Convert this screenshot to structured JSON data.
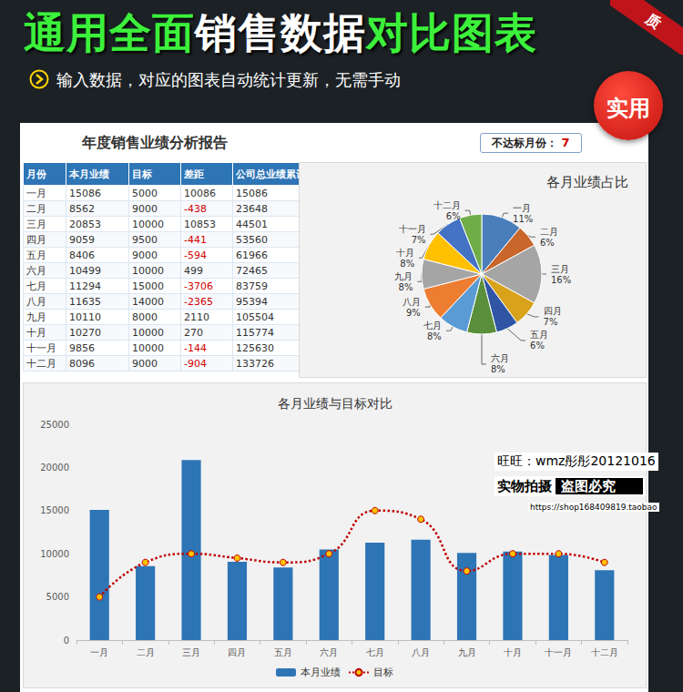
{
  "header": {
    "title": "通用全面销售数据对比图表",
    "subtitle": "输入数据，对应的图表自动统计更新，无需手动",
    "ribbon": "质",
    "badge": "实用"
  },
  "report": {
    "title": "年度销售业绩分析报告",
    "kpi": {
      "label": "不达标月份：",
      "value": 7
    }
  },
  "table": {
    "columns": [
      "月份",
      "本月业绩",
      "目标",
      "差距",
      "公司总业绩累计"
    ],
    "rows": [
      [
        "一月",
        15086,
        5000,
        10086,
        15086
      ],
      [
        "二月",
        8562,
        9000,
        -438,
        23648
      ],
      [
        "三月",
        20853,
        10000,
        10853,
        44501
      ],
      [
        "四月",
        9059,
        9500,
        -441,
        53560
      ],
      [
        "五月",
        8406,
        9000,
        -594,
        61966
      ],
      [
        "六月",
        10499,
        10000,
        499,
        72465
      ],
      [
        "七月",
        11294,
        15000,
        -3706,
        83759
      ],
      [
        "八月",
        11635,
        14000,
        -2365,
        95394
      ],
      [
        "九月",
        10110,
        8000,
        2110,
        105504
      ],
      [
        "十月",
        10270,
        10000,
        270,
        115774
      ],
      [
        "十一月",
        9856,
        10000,
        -144,
        125630
      ],
      [
        "十二月",
        8096,
        9000,
        -904,
        133726
      ]
    ]
  },
  "chart_data": [
    {
      "type": "pie",
      "title": "各月业绩占比",
      "categories": [
        "一月",
        "二月",
        "三月",
        "四月",
        "五月",
        "六月",
        "七月",
        "八月",
        "九月",
        "十月",
        "十一月",
        "十二月"
      ],
      "values": [
        11,
        6,
        16,
        7,
        6,
        8,
        8,
        9,
        8,
        8,
        7,
        6
      ],
      "value_labels": [
        "11%",
        "6%",
        "16%",
        "7%",
        "6%",
        "8%",
        "8%",
        "9%",
        "8%",
        "8%",
        "7%",
        "6%"
      ],
      "colors": [
        "#4a7ebb",
        "#c8662b",
        "#a5a5a5",
        "#d9a21b",
        "#2f55a4",
        "#5a8f3c",
        "#5b9bd5",
        "#ed7d31",
        "#a5a5a5",
        "#ffc000",
        "#4472c4",
        "#70ad47"
      ],
      "data_labels": true
    },
    {
      "type": "bar",
      "title": "各月业绩与目标对比",
      "categories": [
        "一月",
        "二月",
        "三月",
        "四月",
        "五月",
        "六月",
        "七月",
        "八月",
        "九月",
        "十月",
        "十一月",
        "十二月"
      ],
      "series": [
        {
          "name": "本月业绩",
          "type": "bar",
          "color": "#2e75b6",
          "values": [
            15086,
            8562,
            20853,
            9059,
            8406,
            10499,
            11294,
            11635,
            10110,
            10270,
            9856,
            8096
          ]
        },
        {
          "name": "目标",
          "type": "line",
          "color": "#c00000",
          "marker": "circle",
          "line_style": "dotted",
          "values": [
            5000,
            9000,
            10000,
            9500,
            9000,
            10000,
            15000,
            14000,
            8000,
            10000,
            10000,
            9000
          ]
        }
      ],
      "ylim": [
        0,
        25000
      ],
      "yticks": [
        0,
        5000,
        10000,
        15000,
        20000,
        25000
      ],
      "grid": false,
      "legend": "bottom"
    }
  ],
  "watermark": {
    "contact": "旺旺：wmz彤彤20121016",
    "note": "实物拍摄",
    "warning": "盗图必究",
    "url": "https://shop168409819.taobao"
  }
}
